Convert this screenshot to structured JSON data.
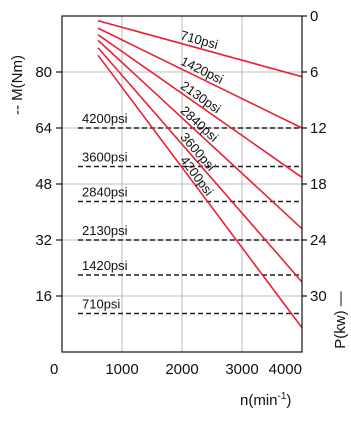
{
  "chart_data": {
    "type": "line",
    "title": "",
    "xlabel_base": "n(min",
    "xlabel_sup": "-1",
    "xlabel_close": ")",
    "ylabel_left": "-- M(Nm)",
    "ylabel_right": "P(kw) —",
    "xlim": [
      0,
      4000
    ],
    "xticks": [
      0,
      1000,
      2000,
      3000,
      4000
    ],
    "ylim_left": [
      0,
      96
    ],
    "yticks_left": [
      16,
      32,
      48,
      64,
      80
    ],
    "ylim_right": [
      0,
      36
    ],
    "yticks_right": [
      0,
      6,
      12,
      18,
      24,
      30
    ],
    "grid": true,
    "torque_series": [
      {
        "name": "710psi",
        "x": [
          600,
          4000
        ],
        "y": [
          11,
          11
        ]
      },
      {
        "name": "1420psi",
        "x": [
          600,
          4000
        ],
        "y": [
          22,
          22
        ]
      },
      {
        "name": "2130psi",
        "x": [
          600,
          4000
        ],
        "y": [
          32,
          32
        ]
      },
      {
        "name": "2840psi",
        "x": [
          600,
          4000
        ],
        "y": [
          43,
          43
        ]
      },
      {
        "name": "3600psi",
        "x": [
          600,
          4000
        ],
        "y": [
          53,
          53
        ]
      },
      {
        "name": "4200psi",
        "x": [
          600,
          4000
        ],
        "y": [
          64,
          64
        ]
      }
    ],
    "power_series": [
      {
        "name": "710psi",
        "x": [
          600,
          4000
        ],
        "y": [
          0.5,
          6.5
        ]
      },
      {
        "name": "1420psi",
        "x": [
          600,
          4000
        ],
        "y": [
          1.3,
          12.0
        ]
      },
      {
        "name": "2130psi",
        "x": [
          600,
          4000
        ],
        "y": [
          2.0,
          17.3
        ]
      },
      {
        "name": "2840psi",
        "x": [
          600,
          4000
        ],
        "y": [
          2.6,
          22.8
        ]
      },
      {
        "name": "3600psi",
        "x": [
          600,
          4000
        ],
        "y": [
          3.4,
          28.5
        ]
      },
      {
        "name": "4200psi",
        "x": [
          600,
          4000
        ],
        "y": [
          4.2,
          33.4
        ]
      }
    ],
    "colors": {
      "power": "#e32636",
      "torque": "#222222",
      "grid": "#bbbbbb",
      "axis": "#111111"
    }
  }
}
